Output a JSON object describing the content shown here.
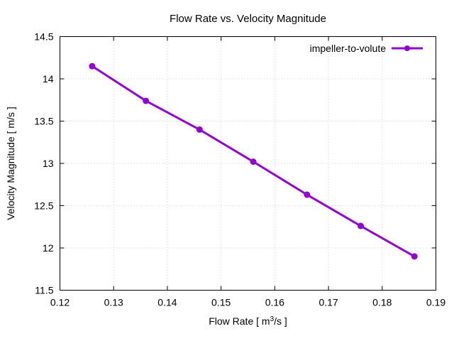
{
  "chart_data": {
    "type": "line",
    "title": "Flow Rate vs. Velocity Magnitude",
    "xlabel": "Flow Rate [ m³/s ]",
    "xlabel_parts": {
      "before": "Flow Rate [ m",
      "sup": "3",
      "after": "/s ]"
    },
    "ylabel": "Velocity Magnitude [ m/s ]",
    "xlim": [
      0.12,
      0.19
    ],
    "ylim": [
      11.5,
      14.5
    ],
    "xticks": [
      "0.12",
      "0.13",
      "0.14",
      "0.15",
      "0.16",
      "0.17",
      "0.18",
      "0.19"
    ],
    "yticks": [
      "11.5",
      "12",
      "12.5",
      "13",
      "13.5",
      "14",
      "14.5"
    ],
    "grid": true,
    "legend_position": "top-right",
    "series": [
      {
        "name": "impeller-to-volute",
        "color": "#9400d3",
        "x": [
          0.126,
          0.136,
          0.146,
          0.156,
          0.166,
          0.176,
          0.186
        ],
        "y": [
          14.15,
          13.74,
          13.4,
          13.02,
          12.63,
          12.26,
          11.9
        ]
      }
    ]
  }
}
